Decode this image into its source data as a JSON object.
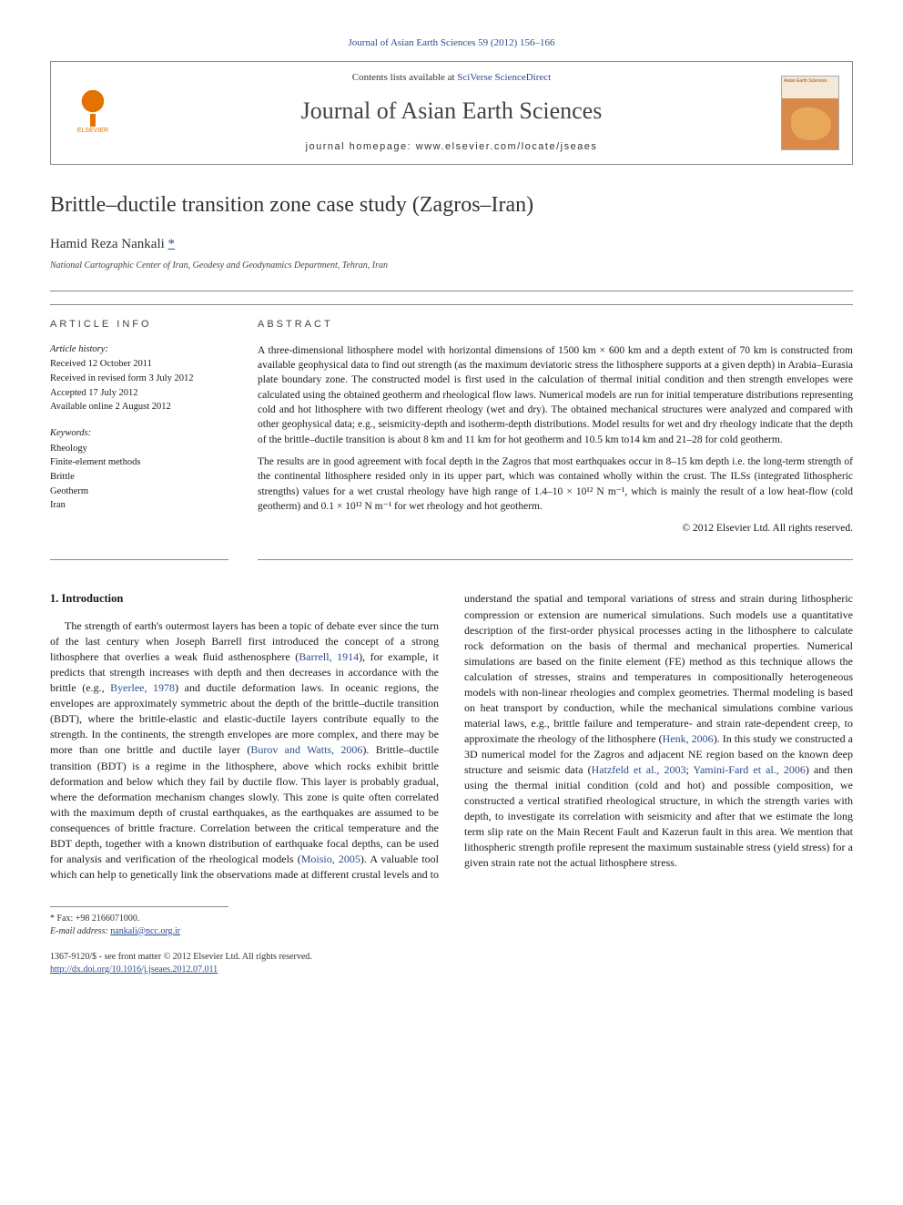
{
  "top_ref": "Journal of Asian Earth Sciences 59 (2012) 156–166",
  "header": {
    "contents_prefix": "Contents lists available at ",
    "contents_link": "SciVerse ScienceDirect",
    "journal_name": "Journal of Asian Earth Sciences",
    "homepage_prefix": "journal homepage: ",
    "homepage_url": "www.elsevier.com/locate/jseaes",
    "publisher_name": "ELSEVIER",
    "cover_label": "Asian Earth Sciences"
  },
  "title": "Brittle–ductile transition zone case study (Zagros–Iran)",
  "author": "Hamid Reza Nankali",
  "star": "*",
  "affiliation": "National Cartographic Center of Iran, Geodesy and Geodynamics Department, Tehran, Iran",
  "info": {
    "heading": "article info",
    "history_label": "Article history:",
    "received": "Received 12 October 2011",
    "revised": "Received in revised form 3 July 2012",
    "accepted": "Accepted 17 July 2012",
    "online": "Available online 2 August 2012",
    "keywords_label": "Keywords:",
    "keywords": [
      "Rheology",
      "Finite-element methods",
      "Brittle",
      "Geotherm",
      "Iran"
    ]
  },
  "abstract": {
    "heading": "abstract",
    "p1": "A three-dimensional lithosphere model with horizontal dimensions of 1500 km × 600 km and a depth extent of 70 km is constructed from available geophysical data to find out strength (as the maximum deviatoric stress the lithosphere supports at a given depth) in Arabia–Eurasia plate boundary zone. The constructed model is first used in the calculation of thermal initial condition and then strength envelopes were calculated using the obtained geotherm and rheological flow laws. Numerical models are run for initial temperature distributions representing cold and hot lithosphere with two different rheology (wet and dry). The obtained mechanical structures were analyzed and compared with other geophysical data; e.g., seismicity-depth and isotherm-depth distributions. Model results for wet and dry rheology indicate that the depth of the brittle–ductile transition is about 8 km and 11 km for hot geotherm and 10.5 km to14 km and 21–28 for cold geotherm.",
    "p2": "The results are in good agreement with focal depth in the Zagros that most earthquakes occur in 8–15 km depth i.e. the long-term strength of the continental lithosphere resided only in its upper part, which was contained wholly within the crust. The ILSs (integrated lithospheric strengths) values for a wet crustal rheology have high range of 1.4–10 × 10¹² N m⁻¹, which is mainly the result of a low heat-flow (cold geotherm) and 0.1 × 10¹² N m⁻¹ for wet rheology and hot geotherm.",
    "copyright": "© 2012 Elsevier Ltd. All rights reserved."
  },
  "intro": {
    "heading": "1. Introduction",
    "text_parts": {
      "t1": "The strength of earth's outermost layers has been a topic of debate ever since the turn of the last century when Joseph Barrell first introduced the concept of a strong lithosphere that overlies a weak fluid asthenosphere (",
      "c1": "Barrell, 1914",
      "t2": "), for example, it predicts that strength increases with depth and then decreases in accordance with the brittle (e.g., ",
      "c2": "Byerlee, 1978",
      "t3": ") and ductile deformation laws. In oceanic regions, the envelopes are approximately symmetric about the depth of the brittle–ductile transition (BDT), where the brittle-elastic and elastic-ductile layers contribute equally to the strength. In the continents, the strength envelopes are more complex, and there may be more than one brittle and ductile layer (",
      "c3": "Burov and Watts, 2006",
      "t4": "). Brittle–ductile transition (BDT) is a regime in the lithosphere, above which rocks exhibit brittle deformation and below which they fail by ductile flow. This layer is probably gradual, where the deformation mechanism changes slowly. This zone is quite often correlated with the maximum depth of crustal earthquakes, as the earthquakes are assumed to be consequences of brittle fracture. Correlation between the critical temperature and the BDT depth, together with a known distribution of earthquake focal depths, can be used for analysis and verification of the rheological models (",
      "c4": "Moisio, 2005",
      "t5": "). A valuable tool which can help to genetically link the observations made at different crustal levels and to understand the spatial and temporal variations of stress and strain during lithospheric compression or extension are numerical simulations. Such models use a quantitative description of the first-order physical processes acting in the lithosphere to calculate rock deformation on the basis of thermal and mechanical properties. Numerical simulations are based on the finite element (FE) method as this technique allows the calculation of stresses, strains and temperatures in compositionally heterogeneous models with non-linear rheologies and complex geometries. Thermal modeling is based on heat transport by conduction, while the mechanical simulations combine various material laws, e.g., brittle failure and temperature- and strain rate-dependent creep, to approximate the rheology of the lithosphere (",
      "c5": "Henk, 2006",
      "t6": "). In this study we constructed a 3D numerical model for the Zagros and adjacent NE region based on the known deep structure and seismic data (",
      "c6": "Hatzfeld et al., 2003",
      "t7": "; ",
      "c7": "Yamini-Fard et al., 2006",
      "t8": ") and then using the thermal initial condition (cold and hot) and possible composition, we constructed a vertical stratified rheological structure, in which the strength varies with depth, to investigate its correlation with seismicity and after that we estimate the long term slip rate on the Main Recent Fault and Kazerun fault in this area. We mention that lithospheric strength profile represent the maximum sustainable stress (yield stress) for a given strain rate not the actual lithosphere stress."
    }
  },
  "footer": {
    "fax_label": "* Fax: +98 2166071000.",
    "email_label": "E-mail address: ",
    "email": "nankali@ncc.org.ir",
    "issn": "1367-9120/$ - see front matter © 2012 Elsevier Ltd. All rights reserved.",
    "doi": "http://dx.doi.org/10.1016/j.jseaes.2012.07.011"
  },
  "colors": {
    "link": "#2a4d8f",
    "text": "#1a1a1a",
    "rule": "#888888",
    "elsevier": "#e47200"
  }
}
